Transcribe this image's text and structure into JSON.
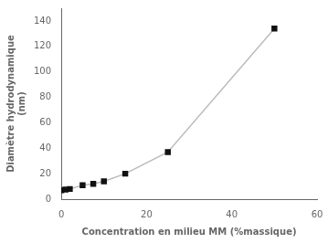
{
  "chart_data": {
    "type": "line",
    "x": [
      0,
      1,
      2,
      5,
      7.5,
      10,
      15,
      25,
      50
    ],
    "values": [
      7,
      7.5,
      8,
      11,
      12,
      14,
      20,
      37,
      134
    ],
    "xlabel": "Concentration en milieu MM (%massique)",
    "ylabel": "Diamètre hydrodynamique\n(nm)",
    "xlim": [
      0,
      60
    ],
    "ylim": [
      0,
      150
    ],
    "xticks": [
      0,
      20,
      40,
      60
    ],
    "yticks": [
      0,
      20,
      40,
      60,
      80,
      100,
      120,
      140
    ],
    "color": "#bbbbbb",
    "marker_color": "#111111",
    "marker": "square",
    "grid": false
  }
}
